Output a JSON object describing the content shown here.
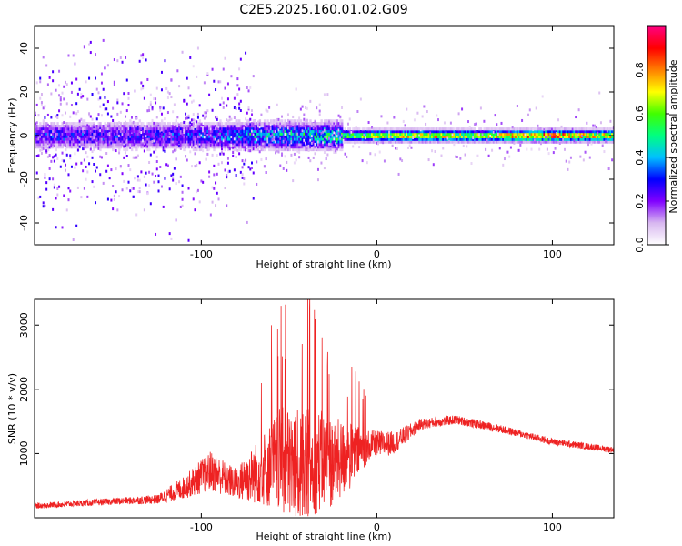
{
  "title": "C2E5.2025.160.01.02.G09",
  "chart_data": [
    {
      "type": "heatmap",
      "xlabel": "Height of straight line (km)",
      "ylabel": "Frequency (Hz)",
      "xlim": [
        -195,
        135
      ],
      "ylim": [
        -50,
        50
      ],
      "xticks": [
        -100,
        0,
        100
      ],
      "yticks": [
        -40,
        -20,
        0,
        20,
        40
      ],
      "colorbar": {
        "label": "Normalized spectral amplitude",
        "range": [
          0,
          1
        ],
        "ticks": [
          0.0,
          0.2,
          0.4,
          0.6,
          0.8
        ],
        "colors": [
          "#ffffff",
          "#d8b8f0",
          "#8000ff",
          "#0000ff",
          "#00c0ff",
          "#00ff80",
          "#40ff00",
          "#ffff00",
          "#ff8000",
          "#ff0000",
          "#ff0080"
        ]
      },
      "ridge": [
        {
          "x": -195,
          "amp": 0.3
        },
        {
          "x": -150,
          "amp": 0.3
        },
        {
          "x": -110,
          "amp": 0.33
        },
        {
          "x": -90,
          "amp": 0.38
        },
        {
          "x": -70,
          "amp": 0.45
        },
        {
          "x": -40,
          "amp": 0.5
        },
        {
          "x": -20,
          "amp": 0.55
        },
        {
          "x": 0,
          "amp": 0.75
        },
        {
          "x": 25,
          "amp": 0.8
        },
        {
          "x": 60,
          "amp": 0.72
        },
        {
          "x": 95,
          "amp": 0.92
        },
        {
          "x": 120,
          "amp": 0.78
        },
        {
          "x": 135,
          "amp": 0.8
        }
      ]
    },
    {
      "type": "line",
      "xlabel": "Height of straight line (km)",
      "ylabel": "SNR (10 * v/v)",
      "xlim": [
        -195,
        135
      ],
      "ylim": [
        0,
        3400
      ],
      "xticks": [
        -100,
        0,
        100
      ],
      "yticks": [
        1000,
        2000,
        3000
      ],
      "color": "#ee2222",
      "series": [
        {
          "envelope": [
            {
              "x": -195,
              "base": 180,
              "spread": 120
            },
            {
              "x": -150,
              "base": 250,
              "spread": 150
            },
            {
              "x": -125,
              "base": 280,
              "spread": 200
            },
            {
              "x": -110,
              "base": 450,
              "spread": 500
            },
            {
              "x": -95,
              "base": 700,
              "spread": 900
            },
            {
              "x": -80,
              "base": 500,
              "spread": 700
            },
            {
              "x": -65,
              "base": 700,
              "spread": 1600
            },
            {
              "x": -55,
              "base": 800,
              "spread": 2400
            },
            {
              "x": -45,
              "base": 700,
              "spread": 2600
            },
            {
              "x": -35,
              "base": 800,
              "spread": 2400
            },
            {
              "x": -25,
              "base": 800,
              "spread": 2000
            },
            {
              "x": -15,
              "base": 900,
              "spread": 1500
            },
            {
              "x": -5,
              "base": 1100,
              "spread": 700
            },
            {
              "x": 10,
              "base": 1150,
              "spread": 500
            },
            {
              "x": 25,
              "base": 1450,
              "spread": 250
            },
            {
              "x": 45,
              "base": 1520,
              "spread": 200
            },
            {
              "x": 70,
              "base": 1380,
              "spread": 180
            },
            {
              "x": 100,
              "base": 1180,
              "spread": 150
            },
            {
              "x": 135,
              "base": 1050,
              "spread": 140
            }
          ]
        }
      ]
    }
  ]
}
